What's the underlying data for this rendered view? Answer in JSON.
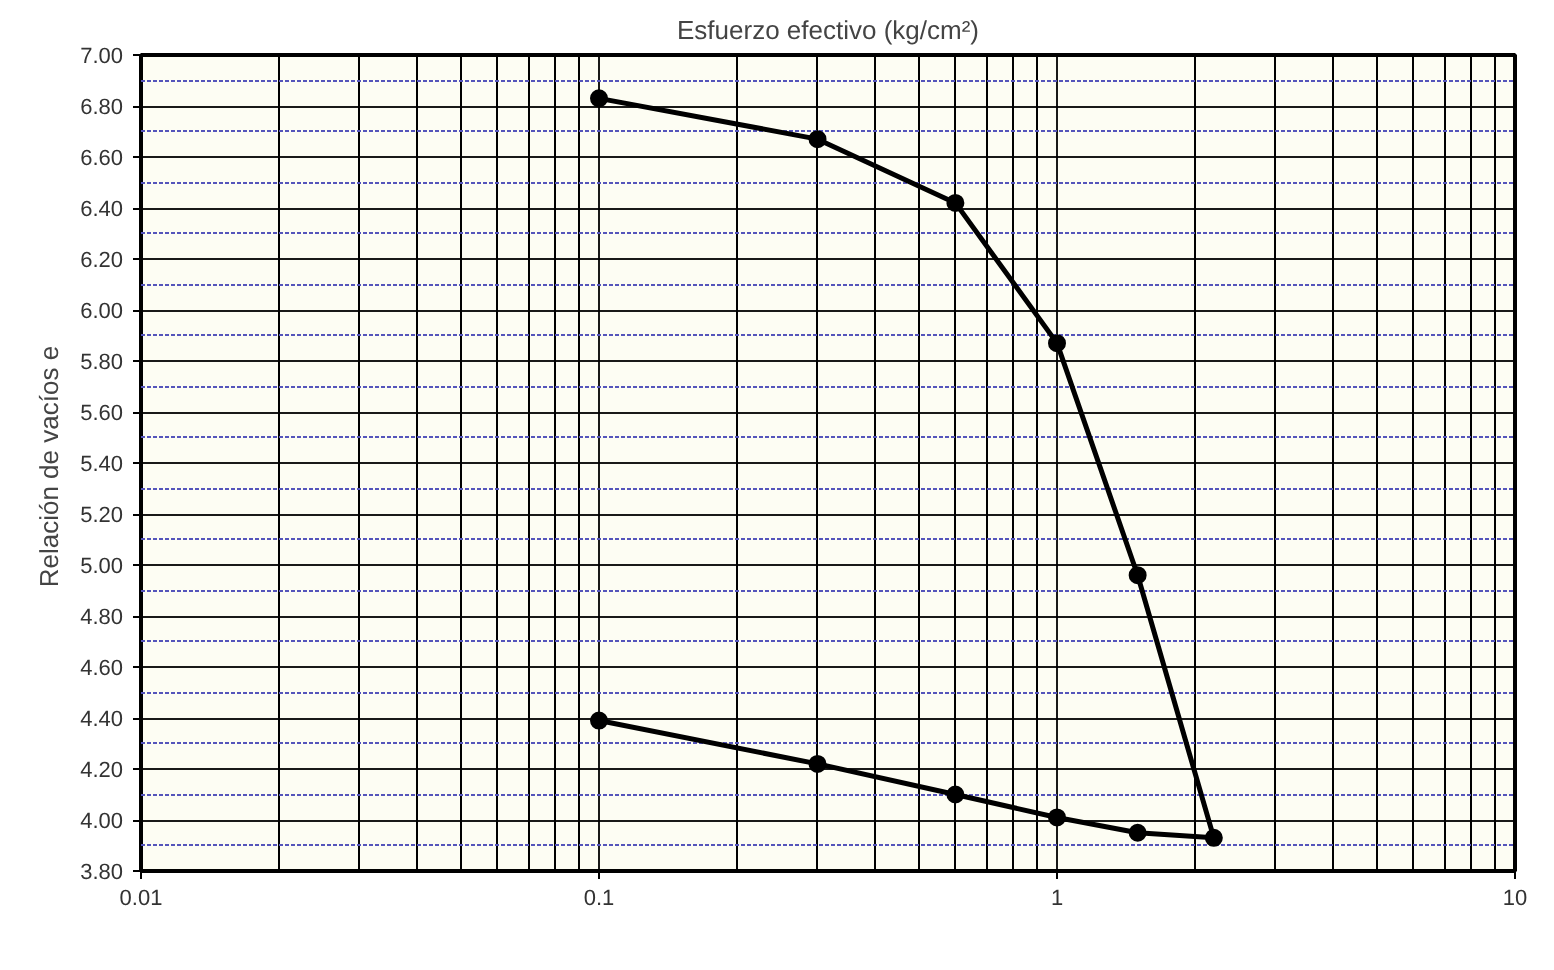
{
  "chart_data": {
    "type": "line",
    "title": "Esfuerzo efectivo (kg/cm²)",
    "ylabel": "Relación de vacíos  e",
    "log": "x",
    "grid": true,
    "marker": "circle",
    "line_style": "solid",
    "xlim": [
      0.01,
      10
    ],
    "xticks": [
      0.01,
      0.1,
      1,
      10
    ],
    "ylim": [
      3.8,
      7.0
    ],
    "yticks": [
      {
        "value": 3.8,
        "label": "3.80"
      },
      {
        "value": 3.9,
        "label": null
      },
      {
        "value": 4.0,
        "label": "4.00"
      },
      {
        "value": 4.1,
        "label": null
      },
      {
        "value": 4.2,
        "label": "4.20"
      },
      {
        "value": 4.3,
        "label": null
      },
      {
        "value": 4.4,
        "label": "4.40"
      },
      {
        "value": 4.5,
        "label": null
      },
      {
        "value": 4.6,
        "label": "4.60"
      },
      {
        "value": 4.7,
        "label": null
      },
      {
        "value": 4.8,
        "label": "4.80"
      },
      {
        "value": 4.9,
        "label": null
      },
      {
        "value": 5.0,
        "label": "5.00"
      },
      {
        "value": 5.1,
        "label": null
      },
      {
        "value": 5.2,
        "label": "5.20"
      },
      {
        "value": 5.3,
        "label": null
      },
      {
        "value": 5.4,
        "label": "5.40"
      },
      {
        "value": 5.5,
        "label": null
      },
      {
        "value": 5.6,
        "label": "5.60"
      },
      {
        "value": 5.7,
        "label": null
      },
      {
        "value": 5.8,
        "label": "5.80"
      },
      {
        "value": 5.9,
        "label": null
      },
      {
        "value": 6.0,
        "label": "6.00"
      },
      {
        "value": 6.1,
        "label": null
      },
      {
        "value": 6.2,
        "label": "6.20"
      },
      {
        "value": 6.3,
        "label": null
      },
      {
        "value": 6.4,
        "label": "6.40"
      },
      {
        "value": 6.5,
        "label": null
      },
      {
        "value": 6.6,
        "label": "6.60"
      },
      {
        "value": 6.7,
        "label": null
      },
      {
        "value": 6.8,
        "label": "6.80"
      },
      {
        "value": 6.9,
        "label": null
      },
      {
        "value": 7.0,
        "label": "7.00"
      }
    ],
    "series": [
      {
        "color": "#000000",
        "x": [
          0.1,
          0.3,
          0.6,
          1,
          1.5,
          2.2,
          1.5,
          1,
          0.6,
          0.3,
          0.1
        ],
        "values": [
          6.83,
          6.67,
          6.42,
          5.87,
          4.96,
          3.93,
          3.95,
          4.01,
          4.1,
          4.22,
          4.39
        ]
      }
    ]
  }
}
